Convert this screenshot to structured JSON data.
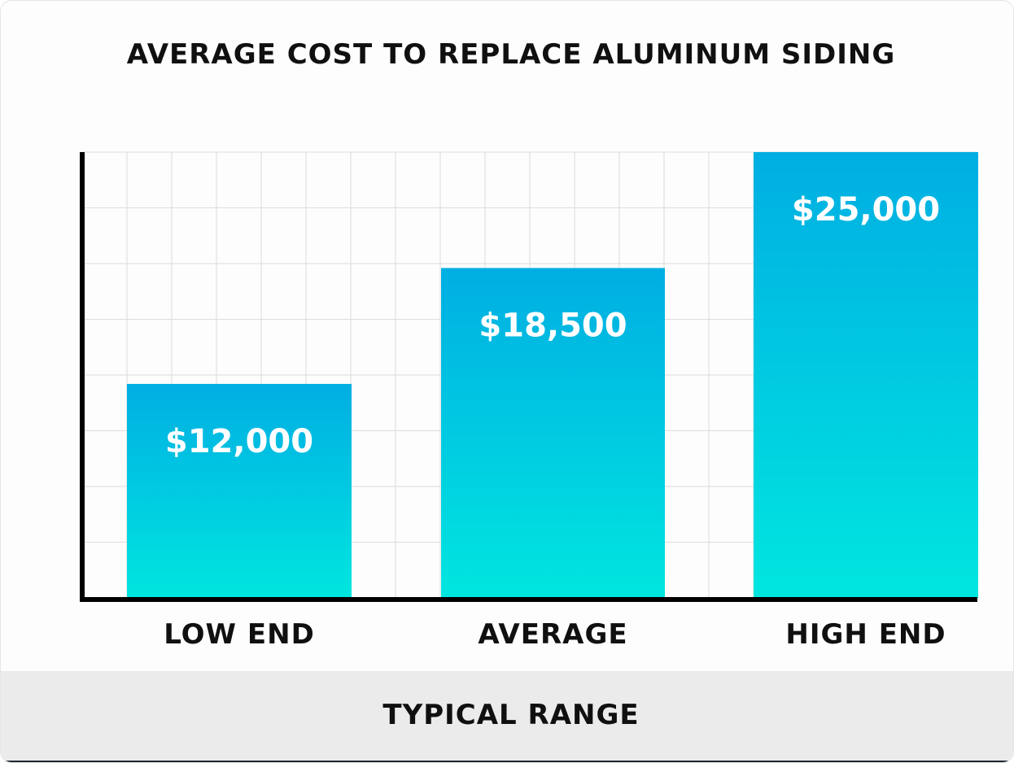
{
  "chart_data": {
    "type": "bar",
    "title": "AVERAGE COST TO REPLACE ALUMINUM SIDING",
    "categories": [
      "LOW END",
      "AVERAGE",
      "HIGH END"
    ],
    "values": [
      12000,
      18500,
      25000
    ],
    "value_labels": [
      "$12,000",
      "$18,500",
      "$25,000"
    ],
    "xlabel": "TYPICAL RANGE",
    "ylabel": "",
    "ylim": [
      0,
      25000
    ],
    "grid": true,
    "colors": {
      "bar_top": "#00aee3",
      "bar_bottom": "#00e6df",
      "axis": "#000000",
      "grid": "#dcdcdc",
      "value_label": "#ffffff",
      "text": "#101010"
    }
  }
}
